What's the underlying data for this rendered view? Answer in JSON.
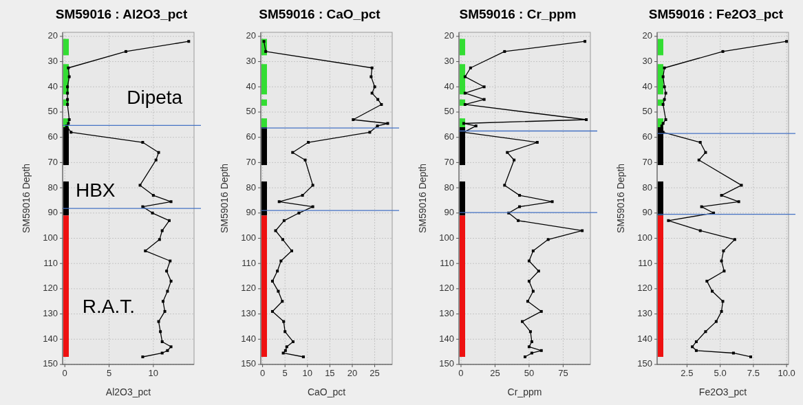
{
  "chart_data": [
    {
      "type": "line",
      "title": "SM59016 : Al2O3_pct",
      "xlabel": "Al2O3_pct",
      "ylabel": "SM59016 Depth",
      "xlim": [
        -0.25,
        14.6
      ],
      "ylim": [
        150,
        18.4
      ],
      "xticks": [
        0,
        5,
        10
      ],
      "yticks": [
        20,
        30,
        40,
        50,
        60,
        70,
        80,
        90,
        100,
        110,
        120,
        130,
        140,
        150
      ],
      "grid": true,
      "marker": "square",
      "line_style": "solid",
      "x": [
        14.0,
        6.9,
        0.4,
        0.5,
        0.3,
        0.3,
        0.3,
        0.3,
        0.5,
        0.4,
        0.2,
        0.7,
        8.8,
        10.6,
        10.3,
        8.5,
        10.0,
        12.0,
        8.8,
        9.9,
        11.8,
        11.0,
        10.7,
        9.1,
        11.9,
        11.5,
        12.0,
        11.6,
        11.1,
        11.3,
        10.6,
        10.8,
        11.0,
        12.0,
        11.6,
        11.0,
        8.8
      ],
      "series": [
        {
          "color": "#000000",
          "values": [
            22,
            26,
            32.5,
            36,
            40,
            42.5,
            45,
            47,
            53,
            54.5,
            55.5,
            58,
            62,
            66,
            69,
            79,
            83,
            85.5,
            87.5,
            90,
            93,
            97,
            100.5,
            105,
            109,
            113,
            117,
            121,
            125,
            129,
            133,
            137,
            141,
            143,
            144.5,
            145.5,
            147
          ]
        }
      ],
      "bands": [
        {
          "axis": "y",
          "from": 21,
          "to": 27.5,
          "color": "#33dd33"
        },
        {
          "axis": "y",
          "from": 31,
          "to": 43,
          "color": "#33dd33"
        },
        {
          "axis": "y",
          "from": 45,
          "to": 47.5,
          "color": "#33dd33"
        },
        {
          "axis": "y",
          "from": 52.5,
          "to": 56,
          "color": "#33dd33"
        },
        {
          "axis": "y",
          "from": 56,
          "to": 71,
          "color": "#000000"
        },
        {
          "axis": "y",
          "from": 77.5,
          "to": 91,
          "color": "#000000"
        },
        {
          "axis": "y",
          "from": 91,
          "to": 147,
          "color": "#ee1111"
        }
      ],
      "ref_lines": [
        {
          "axis": "y",
          "value": 55.3,
          "color": "#4472c4"
        },
        {
          "axis": "y",
          "value": 88.2,
          "color": "#4472c4"
        }
      ],
      "annotations": [
        "Dipeta",
        "HBX",
        "R.A.T."
      ]
    },
    {
      "type": "line",
      "title": "SM59016 : CaO_pct",
      "xlabel": "CaO_pct",
      "ylabel": "SM59016 Depth",
      "xlim": [
        -0.4,
        28.9
      ],
      "ylim": [
        150,
        18.4
      ],
      "xticks": [
        0,
        5,
        10,
        15,
        20,
        25
      ],
      "yticks": [
        20,
        30,
        40,
        50,
        60,
        70,
        80,
        90,
        100,
        110,
        120,
        130,
        140,
        150
      ],
      "grid": true,
      "marker": "square",
      "line_style": "solid",
      "x": [
        0.3,
        0.7,
        24.4,
        24.2,
        25.0,
        24.4,
        25.7,
        26.5,
        20.2,
        27.9,
        25.6,
        23.9,
        10.2,
        6.7,
        9.5,
        11.2,
        8.9,
        3.7,
        11.2,
        8.1,
        4.8,
        2.9,
        4.5,
        6.5,
        4.1,
        3.3,
        2.2,
        3.5,
        4.4,
        2.2,
        4.7,
        5.0,
        6.8,
        5.4,
        5.1,
        4.6,
        9.1
      ],
      "series": [
        {
          "color": "#000000",
          "values": [
            22,
            26,
            32.5,
            36,
            40,
            42.5,
            45,
            47,
            53,
            54.5,
            55.5,
            58,
            62,
            66,
            69,
            79,
            83,
            85.5,
            87.5,
            90,
            93,
            97,
            100.5,
            105,
            109,
            113,
            117,
            121,
            125,
            129,
            133,
            137,
            141,
            143,
            144.5,
            145.5,
            147
          ]
        }
      ],
      "bands": [
        {
          "axis": "y",
          "from": 21,
          "to": 27.5,
          "color": "#33dd33"
        },
        {
          "axis": "y",
          "from": 31,
          "to": 43,
          "color": "#33dd33"
        },
        {
          "axis": "y",
          "from": 45,
          "to": 47.5,
          "color": "#33dd33"
        },
        {
          "axis": "y",
          "from": 52.5,
          "to": 56,
          "color": "#33dd33"
        },
        {
          "axis": "y",
          "from": 56,
          "to": 71,
          "color": "#000000"
        },
        {
          "axis": "y",
          "from": 77.5,
          "to": 91,
          "color": "#000000"
        },
        {
          "axis": "y",
          "from": 91,
          "to": 147,
          "color": "#ee1111"
        }
      ],
      "ref_lines": [
        {
          "axis": "y",
          "value": 56.3,
          "color": "#4472c4"
        },
        {
          "axis": "y",
          "value": 89,
          "color": "#4472c4"
        }
      ]
    },
    {
      "type": "line",
      "title": "SM59016 : Cr_ppm",
      "xlabel": "Cr_ppm",
      "ylabel": "SM59016 Depth",
      "xlim": [
        -1.5,
        95
      ],
      "ylim": [
        150,
        18.4
      ],
      "xticks": [
        0,
        25,
        50,
        75
      ],
      "yticks": [
        20,
        30,
        40,
        50,
        60,
        70,
        80,
        90,
        100,
        110,
        120,
        130,
        140,
        150
      ],
      "grid": true,
      "marker": "square",
      "line_style": "solid",
      "x": [
        91,
        32,
        7,
        3,
        17,
        3,
        17,
        3,
        92,
        2,
        11,
        2,
        56,
        34,
        39,
        32,
        43,
        67,
        43,
        35,
        42,
        89,
        64,
        53,
        50,
        57,
        50,
        53,
        49,
        59,
        45,
        51,
        52,
        50,
        59,
        52,
        47
      ],
      "series": [
        {
          "color": "#000000",
          "values": [
            22,
            26,
            32.5,
            36,
            40,
            42.5,
            45,
            47,
            53,
            54.5,
            55.5,
            58,
            62,
            66,
            69,
            79,
            83,
            85.5,
            87.5,
            90,
            93,
            97,
            100.5,
            105,
            109,
            113,
            117,
            121,
            125,
            129,
            133,
            137,
            141,
            143,
            144.5,
            145.5,
            147
          ]
        }
      ],
      "bands": [
        {
          "axis": "y",
          "from": 21,
          "to": 27.5,
          "color": "#33dd33"
        },
        {
          "axis": "y",
          "from": 31,
          "to": 43,
          "color": "#33dd33"
        },
        {
          "axis": "y",
          "from": 45,
          "to": 47.5,
          "color": "#33dd33"
        },
        {
          "axis": "y",
          "from": 52.5,
          "to": 56,
          "color": "#33dd33"
        },
        {
          "axis": "y",
          "from": 56,
          "to": 71,
          "color": "#000000"
        },
        {
          "axis": "y",
          "from": 77.5,
          "to": 91,
          "color": "#000000"
        },
        {
          "axis": "y",
          "from": 91,
          "to": 147,
          "color": "#ee1111"
        }
      ],
      "ref_lines": [
        {
          "axis": "y",
          "value": 57.5,
          "color": "#4472c4"
        },
        {
          "axis": "y",
          "value": 89.8,
          "color": "#4472c4"
        }
      ]
    },
    {
      "type": "line",
      "title": "SM59016 : Fe2O3_pct",
      "xlabel": "Fe2O3_pct",
      "ylabel": "SM59016 Depth",
      "xlim": [
        0.25,
        10.15
      ],
      "ylim": [
        150,
        18.4
      ],
      "xticks": [
        {
          "value": 2.5,
          "label": "2.5"
        },
        {
          "value": 5,
          "label": "5.0"
        },
        {
          "value": 7.5,
          "label": "7.5"
        },
        {
          "value": 10,
          "label": "10.0"
        }
      ],
      "yticks": [
        20,
        30,
        40,
        50,
        60,
        70,
        80,
        90,
        100,
        110,
        120,
        130,
        140,
        150
      ],
      "grid": true,
      "marker": "square",
      "line_style": "solid",
      "x": [
        10.0,
        5.2,
        0.8,
        0.7,
        0.8,
        0.9,
        0.8,
        0.7,
        0.9,
        0.7,
        0.6,
        0.7,
        3.5,
        3.9,
        3.4,
        6.6,
        5.1,
        6.4,
        3.6,
        4.5,
        1.1,
        3.5,
        6.1,
        5.25,
        5.1,
        5.3,
        4.0,
        4.4,
        5.2,
        5.1,
        4.7,
        3.9,
        3.2,
        2.9,
        3.2,
        6.0,
        7.3
      ],
      "series": [
        {
          "color": "#000000",
          "values": [
            22,
            26,
            32.5,
            36,
            40,
            42.5,
            45,
            47,
            53,
            54.5,
            55.5,
            58,
            62,
            66,
            69,
            79,
            83,
            85.5,
            87.5,
            90,
            93,
            97,
            100.5,
            105,
            109,
            113,
            117,
            121,
            125,
            129,
            133,
            137,
            141,
            143,
            144.5,
            145.5,
            147
          ]
        }
      ],
      "bands": [
        {
          "axis": "y",
          "from": 21,
          "to": 27.5,
          "color": "#33dd33"
        },
        {
          "axis": "y",
          "from": 31,
          "to": 43,
          "color": "#33dd33"
        },
        {
          "axis": "y",
          "from": 45,
          "to": 47.5,
          "color": "#33dd33"
        },
        {
          "axis": "y",
          "from": 52.5,
          "to": 56,
          "color": "#33dd33"
        },
        {
          "axis": "y",
          "from": 56,
          "to": 71,
          "color": "#000000"
        },
        {
          "axis": "y",
          "from": 77.5,
          "to": 91,
          "color": "#000000"
        },
        {
          "axis": "y",
          "from": 91,
          "to": 147,
          "color": "#ee1111"
        }
      ],
      "ref_lines": [
        {
          "axis": "y",
          "value": 58.5,
          "color": "#4472c4"
        },
        {
          "axis": "y",
          "value": 90.5,
          "color": "#4472c4"
        }
      ]
    }
  ]
}
